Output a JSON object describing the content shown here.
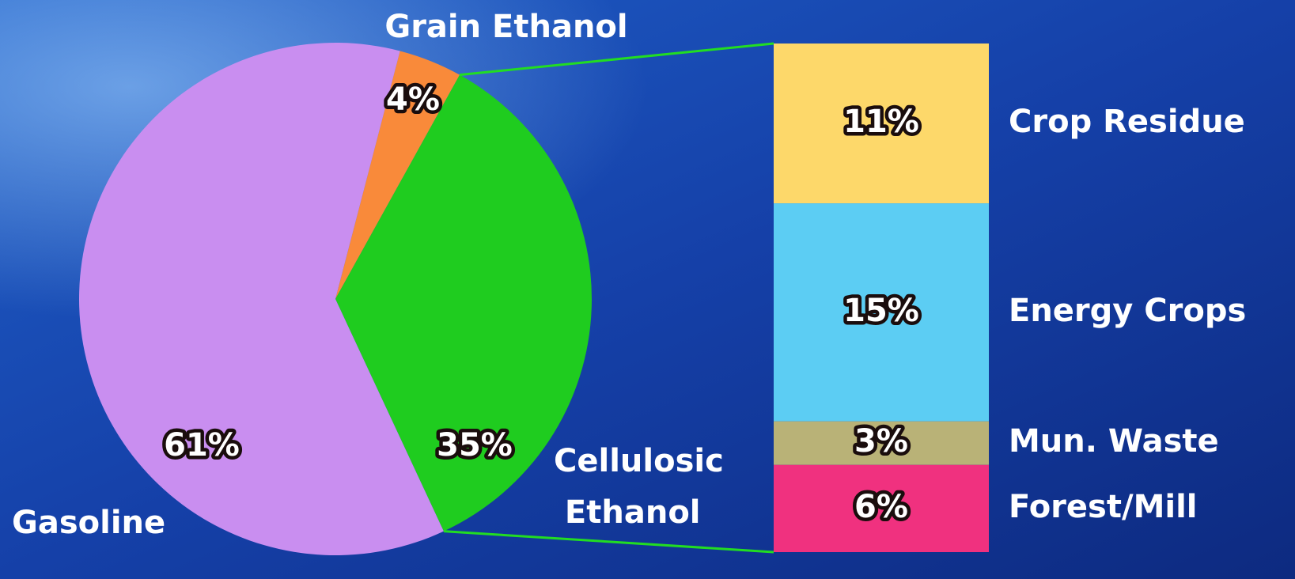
{
  "chart_data": {
    "type": "pie-of-bar",
    "pie": {
      "categories": [
        "Grain Ethanol",
        "Cellulosic Ethanol",
        "Gasoline"
      ],
      "values": [
        4,
        35,
        61
      ],
      "value_labels": [
        "4%",
        "35%",
        "61%"
      ],
      "colors": [
        "#f98a3a",
        "#1fcc1f",
        "#c98ef0"
      ]
    },
    "breakdown": {
      "categories": [
        "Crop Residue",
        "Energy Crops",
        "Mun. Waste",
        "Forest/Mill"
      ],
      "values": [
        11,
        15,
        3,
        6
      ],
      "value_labels": [
        "11%",
        "15%",
        "3%",
        "6%"
      ],
      "colors": [
        "#fdd86a",
        "#5ccdf3",
        "#b9b277",
        "#f0317f"
      ]
    },
    "connector_color": "#22dd22"
  }
}
